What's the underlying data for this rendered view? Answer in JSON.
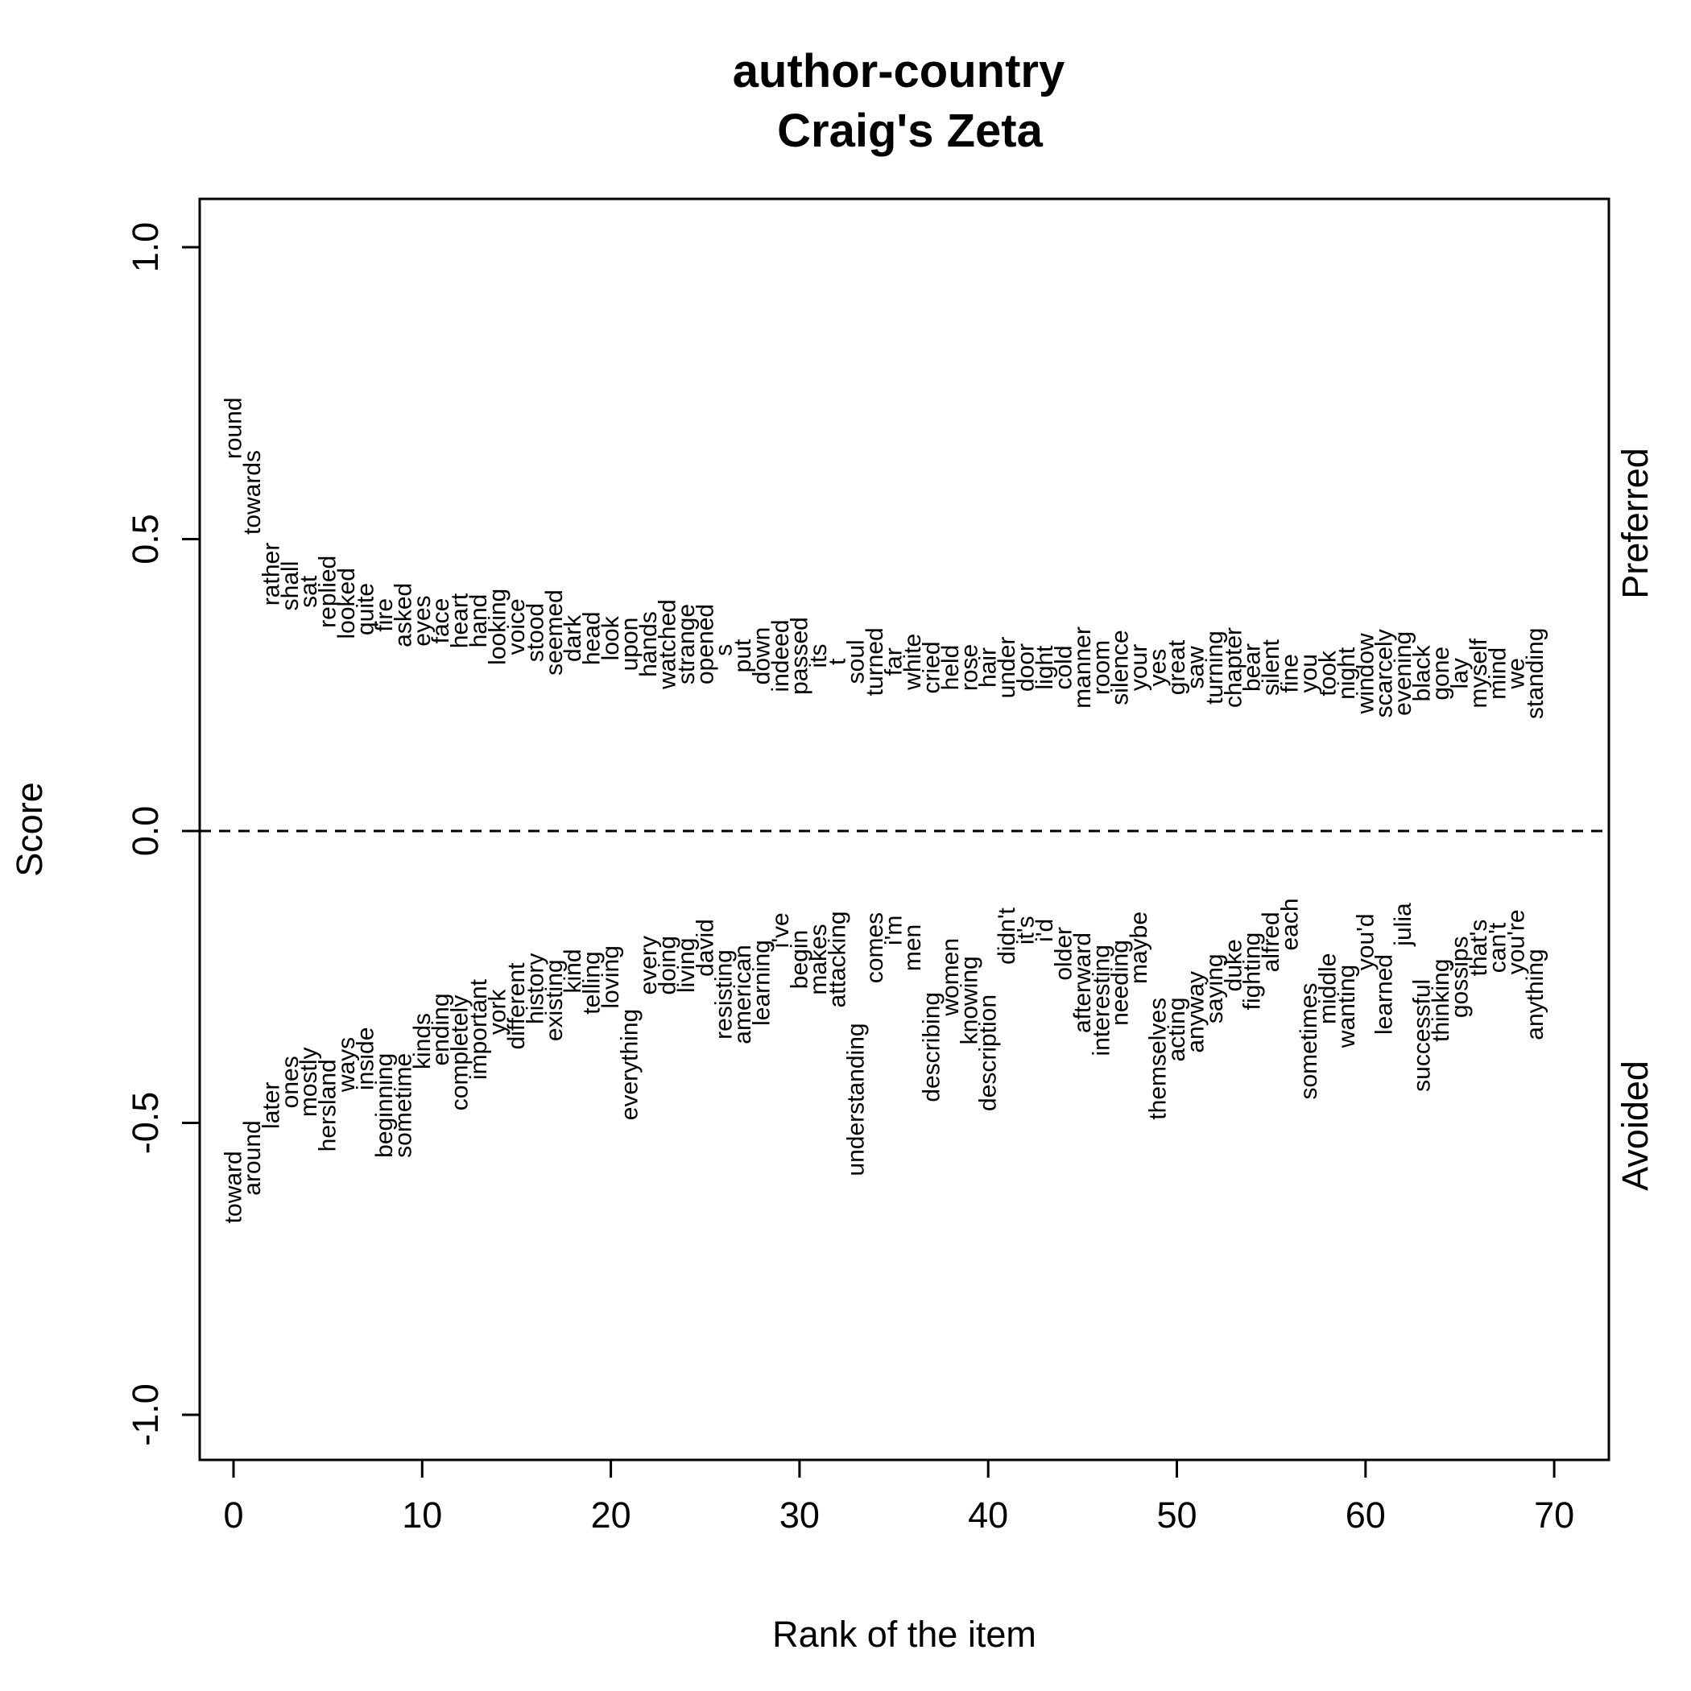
{
  "chart_data": {
    "type": "scatter",
    "title": "author-country",
    "subtitle": "Craig's Zeta",
    "xlabel": "Rank of the item",
    "ylabel": "Score",
    "right_top_label": "Preferred",
    "right_bottom_label": "Avoided",
    "xlim": [
      -1.8,
      72.8
    ],
    "ylim": [
      -1.08,
      1.08
    ],
    "xticks": [
      0,
      10,
      20,
      30,
      40,
      50,
      60,
      70
    ],
    "yticks": [
      -1.0,
      -0.5,
      0.0,
      0.5,
      1.0
    ],
    "ytick_labels": [
      "-1.0",
      "-0.5",
      "0.0",
      "0.5",
      "1.0"
    ],
    "reference_line": 0,
    "series": [
      {
        "name": "Preferred",
        "words": [
          "round",
          "towards",
          "rather",
          "shall",
          "sat",
          "replied",
          "looked",
          "quite",
          "fire",
          "asked",
          "eyes",
          "face",
          "heart",
          "hand",
          "looking",
          "voice",
          "stood",
          "seemed",
          "dark",
          "head",
          "look",
          "upon",
          "hands",
          "watched",
          "strange",
          "opened",
          "s",
          "put",
          "down",
          "indeed",
          "passed",
          "its",
          "t",
          "soul",
          "turned",
          "far",
          "white",
          "cried",
          "held",
          "rose",
          "hair",
          "under",
          "door",
          "light",
          "cold",
          "manner",
          "room",
          "silence",
          "your",
          "yes",
          "great",
          "saw",
          "turning",
          "chapter",
          "bear",
          "silent",
          "fine",
          "you",
          "took",
          "night",
          "window",
          "scarcely",
          "evening",
          "black",
          "gone",
          "lay",
          "myself",
          "mind",
          "we",
          "standing"
        ],
        "values": [
          0.69,
          0.58,
          0.44,
          0.42,
          0.41,
          0.41,
          0.39,
          0.38,
          0.37,
          0.37,
          0.36,
          0.36,
          0.36,
          0.36,
          0.35,
          0.35,
          0.34,
          0.34,
          0.33,
          0.33,
          0.33,
          0.32,
          0.32,
          0.32,
          0.32,
          0.32,
          0.31,
          0.3,
          0.3,
          0.3,
          0.3,
          0.3,
          0.29,
          0.29,
          0.29,
          0.29,
          0.29,
          0.28,
          0.28,
          0.28,
          0.28,
          0.28,
          0.28,
          0.28,
          0.28,
          0.28,
          0.28,
          0.28,
          0.28,
          0.28,
          0.28,
          0.28,
          0.28,
          0.28,
          0.28,
          0.28,
          0.27,
          0.27,
          0.27,
          0.27,
          0.27,
          0.27,
          0.27,
          0.27,
          0.27,
          0.27,
          0.27,
          0.27,
          0.27,
          0.27
        ]
      },
      {
        "name": "Avoided",
        "words": [
          "toward",
          "around",
          "later",
          "ones",
          "mostly",
          "hersland",
          "ways",
          "inside",
          "beginning",
          "sometime",
          "kinds",
          "ending",
          "completely",
          "important",
          "york",
          "different",
          "history",
          "existing",
          "kind",
          "telling",
          "loving",
          "everything",
          "every",
          "doing",
          "living",
          "david",
          "resisting",
          "american",
          "learning",
          "i've",
          "begin",
          "makes",
          "attacking",
          "understanding",
          "comes",
          "i'm",
          "men",
          "describing",
          "women",
          "knowing",
          "description",
          "didn't",
          "it's",
          "i'd",
          "older",
          "afterward",
          "interesting",
          "needing",
          "maybe",
          "themselves",
          "acting",
          "anyway",
          "saying",
          "duke",
          "fighting",
          "alfred",
          "each",
          "sometimes",
          "middle",
          "wanting",
          "you'd",
          "learned",
          "julia",
          "successful",
          "thinking",
          "gossips",
          "that's",
          "can't",
          "you're",
          "anything"
        ],
        "values": [
          -0.61,
          -0.56,
          -0.47,
          -0.43,
          -0.43,
          -0.47,
          -0.4,
          -0.39,
          -0.47,
          -0.47,
          -0.36,
          -0.34,
          -0.38,
          -0.34,
          -0.31,
          -0.3,
          -0.27,
          -0.29,
          -0.24,
          -0.26,
          -0.25,
          -0.4,
          -0.23,
          -0.23,
          -0.23,
          -0.2,
          -0.28,
          -0.28,
          -0.26,
          -0.17,
          -0.22,
          -0.22,
          -0.22,
          -0.46,
          -0.2,
          -0.17,
          -0.2,
          -0.37,
          -0.25,
          -0.29,
          -0.38,
          -0.18,
          -0.17,
          -0.17,
          -0.21,
          -0.26,
          -0.29,
          -0.26,
          -0.2,
          -0.39,
          -0.34,
          -0.31,
          -0.27,
          -0.23,
          -0.24,
          -0.19,
          -0.16,
          -0.36,
          -0.27,
          -0.3,
          -0.19,
          -0.28,
          -0.16,
          -0.35,
          -0.29,
          -0.25,
          -0.2,
          -0.2,
          -0.19,
          -0.28
        ]
      }
    ]
  }
}
